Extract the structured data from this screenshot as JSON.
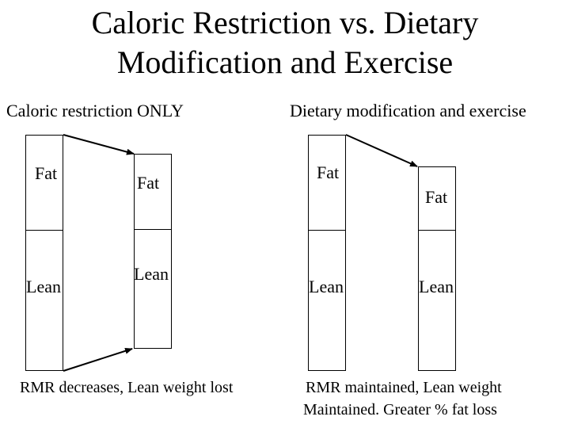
{
  "title": {
    "line1": "Caloric Restriction vs. Dietary",
    "line2": "Modification and Exercise"
  },
  "left": {
    "heading": "Caloric restriction ONLY",
    "before": {
      "fat": "Fat",
      "lean": "Lean"
    },
    "after": {
      "fat": "Fat",
      "lean": "Lean"
    },
    "caption": "RMR decreases, Lean weight lost"
  },
  "right": {
    "heading": "Dietary modification and exercise",
    "before": {
      "fat": "Fat",
      "lean": "Lean"
    },
    "after": {
      "fat": "Fat",
      "lean": "Lean"
    },
    "caption_line1": "RMR maintained, Lean weight",
    "caption_line2": "Maintained.  Greater % fat loss"
  }
}
